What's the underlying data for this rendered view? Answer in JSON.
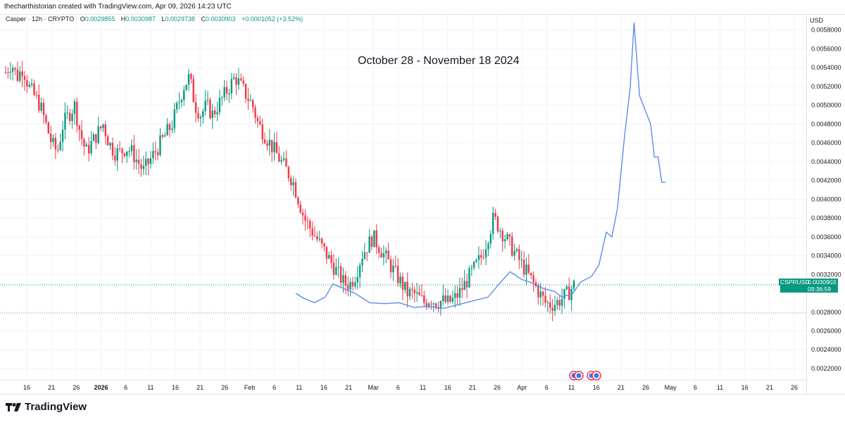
{
  "header": {
    "author_line": "thecharthistorian created with TradingView.com, Apr 09, 2026 14:23 UTC",
    "symbol_desc": "Casper · 12h · CRYPTO",
    "ohlc": {
      "o_label": "O",
      "o": "0.0029855",
      "h_label": "H",
      "h": "0.0030987",
      "l_label": "L",
      "l": "0.0029738",
      "c_label": "C",
      "c": "0.0030903",
      "change": "+0.0001052 (+3.52%)"
    }
  },
  "annotation": "October 28 - November 18 2024",
  "axis": {
    "currency": "USD",
    "price_ticks": [
      "0.0058000",
      "0.0056000",
      "0.0054000",
      "0.0052000",
      "0.0050000",
      "0.0048000",
      "0.0046000",
      "0.0044000",
      "0.0042000",
      "0.0040000",
      "0.0038000",
      "0.0036000",
      "0.0034000",
      "0.0032000",
      "0.0028000",
      "0.0026000",
      "0.0024000",
      "0.0022000"
    ],
    "time_ticks": [
      "16",
      "21",
      "26",
      "2026",
      "6",
      "11",
      "16",
      "21",
      "26",
      "Feb",
      "6",
      "11",
      "16",
      "21",
      "Mar",
      "6",
      "11",
      "16",
      "21",
      "26",
      "Apr",
      "6",
      "11",
      "16",
      "21",
      "26",
      "May",
      "6",
      "11",
      "16",
      "21",
      "26"
    ]
  },
  "last_price": {
    "symbol": "CSPRUSD",
    "value": "0.0030903",
    "countdown": "09:36:59"
  },
  "colors": {
    "up": "#089981",
    "down": "#f23645",
    "overlay": "#5b8def",
    "grid": "#f0f3fa",
    "text": "#131722"
  },
  "logo_text": "TradingView",
  "chart_data": {
    "type": "line",
    "title": "",
    "price_range": [
      0.00208,
      0.00597
    ],
    "candles_close_path": [
      0.00535,
      0.00545,
      0.0053,
      0.0054,
      0.0052,
      0.0051,
      0.005,
      0.0048,
      0.0046,
      0.0045,
      0.0048,
      0.0049,
      0.005,
      0.0047,
      0.0045,
      0.0046,
      0.0047,
      0.0048,
      0.0046,
      0.0045,
      0.0045,
      0.00455,
      0.0045,
      0.0044,
      0.0043,
      0.0044,
      0.0045,
      0.0046,
      0.0047,
      0.0048,
      0.005,
      0.0052,
      0.0053,
      0.005,
      0.0049,
      0.005,
      0.0049,
      0.005,
      0.0051,
      0.0052,
      0.0053,
      0.0052,
      0.0051,
      0.005,
      0.0048,
      0.0047,
      0.0046,
      0.0045,
      0.0044,
      0.0043,
      0.0042,
      0.004,
      0.0038,
      0.0037,
      0.0036,
      0.0035,
      0.0034,
      0.0033,
      0.0032,
      0.0031,
      0.0031,
      0.0032,
      0.0034,
      0.0035,
      0.0036,
      0.0035,
      0.0034,
      0.0033,
      0.0032,
      0.0031,
      0.003,
      0.003,
      0.00295,
      0.0029,
      0.00295,
      0.0029,
      0.00292,
      0.0029,
      0.00293,
      0.003,
      0.0031,
      0.0032,
      0.0033,
      0.0034,
      0.0036,
      0.0038,
      0.0037,
      0.0036,
      0.0035,
      0.0034,
      0.0033,
      0.0032,
      0.0031,
      0.003,
      0.0029,
      0.00288,
      0.0029,
      0.00295,
      0.003,
      0.00309
    ],
    "overlay_series": {
      "name": "",
      "points": [
        [
          0.0,
          0.003
        ],
        [
          0.02,
          0.00295
        ],
        [
          0.05,
          0.0029
        ],
        [
          0.08,
          0.00296
        ],
        [
          0.1,
          0.0031
        ],
        [
          0.13,
          0.00305
        ],
        [
          0.16,
          0.003
        ],
        [
          0.2,
          0.0029
        ],
        [
          0.24,
          0.00289
        ],
        [
          0.28,
          0.0029
        ],
        [
          0.32,
          0.00285
        ],
        [
          0.36,
          0.00286
        ],
        [
          0.4,
          0.00284
        ],
        [
          0.44,
          0.00288
        ],
        [
          0.48,
          0.00292
        ],
        [
          0.52,
          0.00296
        ],
        [
          0.55,
          0.0031
        ],
        [
          0.58,
          0.00323
        ],
        [
          0.61,
          0.00315
        ],
        [
          0.64,
          0.00311
        ],
        [
          0.67,
          0.00305
        ],
        [
          0.7,
          0.00302
        ],
        [
          0.72,
          0.00296
        ],
        [
          0.75,
          0.003
        ],
        [
          0.77,
          0.00312
        ],
        [
          0.8,
          0.00318
        ],
        [
          0.82,
          0.0033
        ],
        [
          0.84,
          0.00365
        ],
        [
          0.855,
          0.0036
        ],
        [
          0.87,
          0.0039
        ],
        [
          0.89,
          0.0047
        ],
        [
          0.905,
          0.0052
        ],
        [
          0.915,
          0.00588
        ],
        [
          0.93,
          0.0051
        ],
        [
          0.945,
          0.00495
        ],
        [
          0.96,
          0.0048
        ],
        [
          0.97,
          0.00445
        ],
        [
          0.98,
          0.00445
        ],
        [
          0.99,
          0.00418
        ],
        [
          1.0,
          0.00418
        ]
      ]
    }
  }
}
